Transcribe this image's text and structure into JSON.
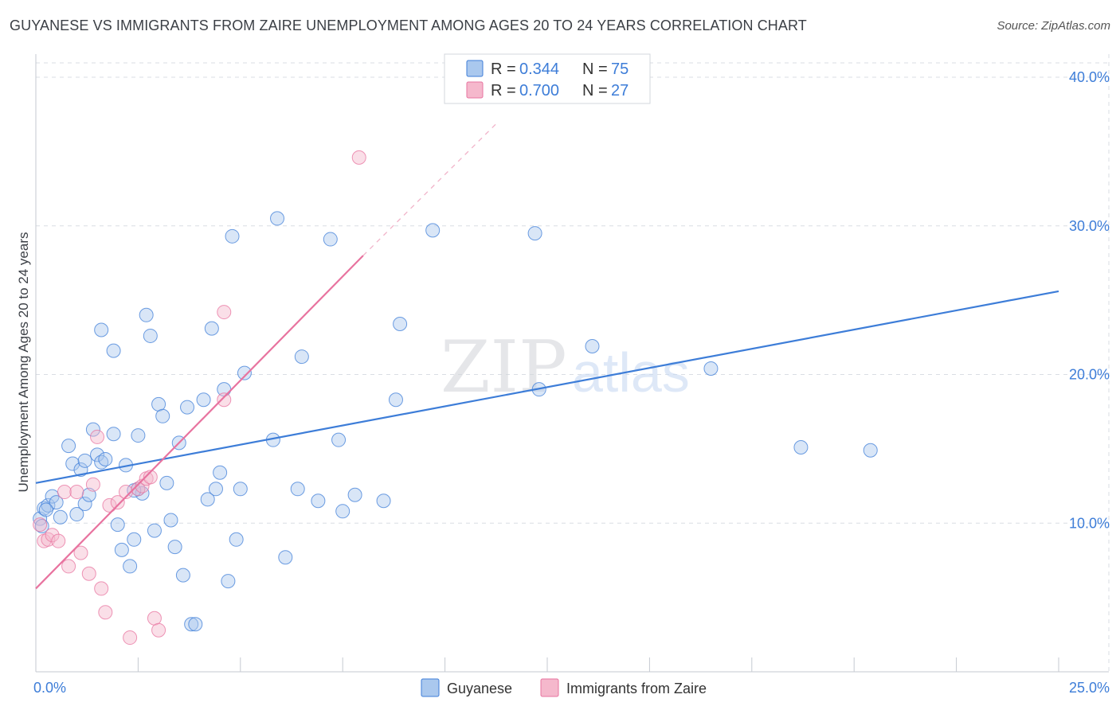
{
  "header": {
    "title": "GUYANESE VS IMMIGRANTS FROM ZAIRE UNEMPLOYMENT AMONG AGES 20 TO 24 YEARS CORRELATION CHART",
    "source": "Source: ZipAtlas.com"
  },
  "watermark": {
    "zip": "ZIP",
    "atlas": "atlas"
  },
  "colors": {
    "blue": "#3d7dd8",
    "blue_fill": "#aac8ee",
    "pink": "#e8739f",
    "pink_fill": "#f5b8cc",
    "grid": "#d9dde3",
    "axis_text": "#3d7dd8"
  },
  "legend": {
    "rows": [
      {
        "r_label": "R = ",
        "r_value": "0.344",
        "n_label": "N = ",
        "n_value": "75"
      },
      {
        "r_label": "R = ",
        "r_value": "0.700",
        "n_label": "N = ",
        "n_value": "27"
      }
    ]
  },
  "bottom_legend": {
    "series1": "Guyanese",
    "series2": "Immigrants from Zaire"
  },
  "chart_data": {
    "type": "scatter",
    "title": "GUYANESE VS IMMIGRANTS FROM ZAIRE UNEMPLOYMENT AMONG AGES 20 TO 24 YEARS CORRELATION CHART",
    "xlabel": "",
    "ylabel": "Unemployment Among Ages 20 to 24 years",
    "xlim": [
      0,
      25
    ],
    "ylim": [
      0,
      40
    ],
    "x_tick_labels": [
      "0.0%",
      "25.0%"
    ],
    "y_tick_values": [
      10,
      20,
      30,
      40
    ],
    "y_tick_labels": [
      "10.0%",
      "20.0%",
      "30.0%",
      "40.0%"
    ],
    "series": [
      {
        "name": "Guyanese",
        "color": "#3d7dd8",
        "r": 0.344,
        "n": 75,
        "trend": {
          "x": [
            0,
            25
          ],
          "y": [
            12.7,
            25.6
          ]
        },
        "points": [
          [
            0.1,
            10.3
          ],
          [
            0.2,
            11.0
          ],
          [
            0.3,
            11.2
          ],
          [
            0.4,
            11.8
          ],
          [
            0.5,
            11.4
          ],
          [
            0.6,
            10.4
          ],
          [
            0.8,
            15.2
          ],
          [
            0.9,
            14.0
          ],
          [
            1.0,
            10.6
          ],
          [
            1.1,
            13.6
          ],
          [
            1.2,
            11.3
          ],
          [
            1.3,
            11.9
          ],
          [
            1.4,
            16.3
          ],
          [
            1.5,
            14.6
          ],
          [
            1.6,
            14.1
          ],
          [
            1.7,
            14.3
          ],
          [
            1.6,
            23.0
          ],
          [
            1.9,
            16.0
          ],
          [
            1.9,
            21.6
          ],
          [
            2.0,
            9.9
          ],
          [
            2.1,
            8.2
          ],
          [
            2.2,
            13.9
          ],
          [
            2.3,
            7.1
          ],
          [
            2.4,
            8.9
          ],
          [
            2.5,
            12.3
          ],
          [
            2.5,
            15.9
          ],
          [
            2.6,
            12.0
          ],
          [
            2.7,
            24.0
          ],
          [
            2.8,
            22.6
          ],
          [
            2.9,
            9.5
          ],
          [
            3.0,
            18.0
          ],
          [
            3.1,
            17.2
          ],
          [
            3.2,
            12.7
          ],
          [
            3.3,
            10.2
          ],
          [
            3.4,
            8.4
          ],
          [
            3.5,
            15.4
          ],
          [
            3.6,
            6.5
          ],
          [
            3.7,
            17.8
          ],
          [
            3.8,
            3.2
          ],
          [
            3.9,
            3.2
          ],
          [
            4.1,
            18.3
          ],
          [
            4.2,
            11.6
          ],
          [
            4.3,
            23.1
          ],
          [
            4.4,
            12.3
          ],
          [
            4.5,
            13.4
          ],
          [
            4.6,
            19.0
          ],
          [
            4.7,
            6.1
          ],
          [
            4.8,
            29.3
          ],
          [
            4.9,
            8.9
          ],
          [
            5.0,
            12.3
          ],
          [
            5.1,
            20.1
          ],
          [
            5.8,
            15.6
          ],
          [
            5.9,
            30.5
          ],
          [
            6.1,
            7.7
          ],
          [
            6.4,
            12.3
          ],
          [
            6.5,
            21.2
          ],
          [
            6.9,
            11.5
          ],
          [
            7.2,
            29.1
          ],
          [
            7.4,
            15.6
          ],
          [
            7.5,
            10.8
          ],
          [
            7.8,
            11.9
          ],
          [
            8.5,
            11.5
          ],
          [
            8.8,
            18.3
          ],
          [
            8.9,
            23.4
          ],
          [
            9.7,
            29.7
          ],
          [
            12.2,
            29.5
          ],
          [
            12.3,
            19.0
          ],
          [
            13.6,
            21.9
          ],
          [
            16.5,
            20.4
          ],
          [
            18.7,
            15.1
          ],
          [
            20.4,
            14.9
          ],
          [
            0.15,
            9.8
          ],
          [
            0.25,
            10.9
          ],
          [
            1.2,
            14.2
          ],
          [
            2.4,
            12.2
          ]
        ]
      },
      {
        "name": "Immigrants from Zaire",
        "color": "#e8739f",
        "r": 0.7,
        "n": 27,
        "trend": {
          "x": [
            0,
            8.0
          ],
          "y": [
            5.6,
            28.0
          ]
        },
        "trend_dashed": {
          "x": [
            8.0,
            11.3
          ],
          "y": [
            28.0,
            37.0
          ]
        },
        "points": [
          [
            0.1,
            9.9
          ],
          [
            0.2,
            8.8
          ],
          [
            0.3,
            8.9
          ],
          [
            0.4,
            9.2
          ],
          [
            0.55,
            8.8
          ],
          [
            0.7,
            12.1
          ],
          [
            0.8,
            7.1
          ],
          [
            1.0,
            12.1
          ],
          [
            1.1,
            8.0
          ],
          [
            1.3,
            6.6
          ],
          [
            1.4,
            12.6
          ],
          [
            1.5,
            15.8
          ],
          [
            1.6,
            5.6
          ],
          [
            1.7,
            4.0
          ],
          [
            1.8,
            11.2
          ],
          [
            2.0,
            11.4
          ],
          [
            2.2,
            12.1
          ],
          [
            2.3,
            2.3
          ],
          [
            2.5,
            12.3
          ],
          [
            2.6,
            12.5
          ],
          [
            2.7,
            13.0
          ],
          [
            2.8,
            13.1
          ],
          [
            2.9,
            3.6
          ],
          [
            3.0,
            2.8
          ],
          [
            4.6,
            24.2
          ],
          [
            4.6,
            18.3
          ],
          [
            7.9,
            34.6
          ]
        ]
      }
    ]
  }
}
